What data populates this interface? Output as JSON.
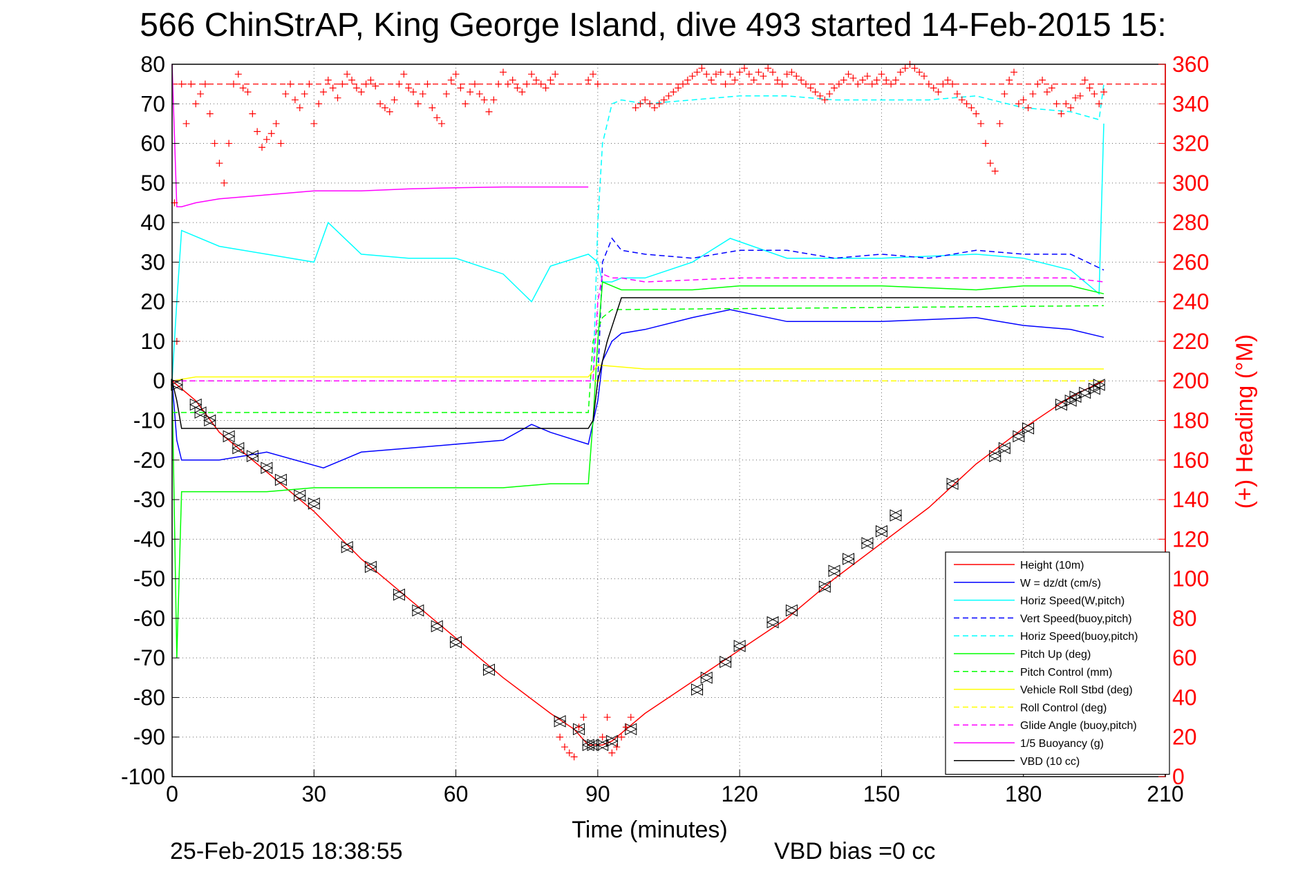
{
  "chart_data": {
    "type": "line",
    "title": "566 ChinStrAP, King George Island, dive 493 started 14-Feb-2015 15:",
    "xlabel": "Time (minutes)",
    "ylabel": "",
    "y2label": "(+) Heading (°M)",
    "xlim": [
      0,
      210
    ],
    "ylim": [
      -100,
      80
    ],
    "y2lim": [
      0,
      360
    ],
    "xticks": [
      "0",
      "30",
      "60",
      "90",
      "120",
      "150",
      "180",
      "210"
    ],
    "yticks": [
      "80",
      "70",
      "60",
      "50",
      "40",
      "30",
      "20",
      "10",
      "0",
      "-10",
      "-20",
      "-30",
      "-40",
      "-50",
      "-60",
      "-70",
      "-80",
      "-90",
      "-100"
    ],
    "y2ticks": [
      "360",
      "340",
      "320",
      "300",
      "280",
      "260",
      "240",
      "220",
      "200",
      "180",
      "160",
      "140",
      "120",
      "100",
      "80",
      "60",
      "40",
      "20",
      "0"
    ],
    "grid": true,
    "legend_position": "bottom-right",
    "series": [
      {
        "name": "Height (10m)",
        "color": "#ff0000",
        "style": "solid",
        "x": [
          0,
          5,
          10,
          20,
          30,
          40,
          50,
          60,
          70,
          80,
          85,
          88,
          91,
          93,
          96,
          100,
          110,
          120,
          130,
          140,
          150,
          160,
          170,
          180,
          190,
          197
        ],
        "y": [
          0,
          -5,
          -13,
          -23,
          -33,
          -45,
          -55,
          -65,
          -75,
          -84,
          -88,
          -92,
          -92,
          -91,
          -88,
          -84,
          -76,
          -68,
          -60,
          -50,
          -41,
          -32,
          -21,
          -12,
          -4,
          0
        ]
      },
      {
        "name": "W = dz/dt (cm/s)",
        "color": "#0000ff",
        "style": "solid",
        "x": [
          0,
          1,
          2,
          10,
          20,
          32,
          40,
          50,
          60,
          70,
          76,
          80,
          88,
          90,
          91,
          93,
          95,
          100,
          110,
          118,
          130,
          150,
          170,
          180,
          190,
          197
        ],
        "y": [
          0,
          -15,
          -20,
          -20,
          -18,
          -22,
          -18,
          -17,
          -16,
          -15,
          -11,
          -13,
          -16,
          -5,
          5,
          10,
          12,
          13,
          16,
          18,
          15,
          15,
          16,
          14,
          13,
          11
        ]
      },
      {
        "name": "Horiz Speed(W,pitch)",
        "color": "#00ffff",
        "style": "solid",
        "x": [
          0,
          1,
          2,
          10,
          20,
          30,
          33,
          40,
          50,
          60,
          70,
          76,
          80,
          88,
          90,
          91,
          93,
          95,
          100,
          110,
          118,
          130,
          150,
          170,
          180,
          190,
          196,
          197
        ],
        "y": [
          0,
          20,
          38,
          34,
          32,
          30,
          40,
          32,
          31,
          31,
          27,
          20,
          29,
          32,
          30,
          25,
          25,
          26,
          26,
          30,
          36,
          31,
          31,
          32,
          31,
          28,
          22,
          65
        ]
      },
      {
        "name": "Vert Speed(buoy,pitch)",
        "color": "#0000ff",
        "style": "dashed",
        "x": [
          90,
          91,
          93,
          95,
          100,
          110,
          120,
          130,
          140,
          150,
          160,
          170,
          180,
          190,
          197
        ],
        "y": [
          0,
          30,
          36,
          33,
          32,
          31,
          33,
          33,
          31,
          32,
          31,
          33,
          32,
          32,
          28
        ]
      },
      {
        "name": "Horiz Speed(buoy,pitch)",
        "color": "#00ffff",
        "style": "dashed",
        "x": [
          89,
          90,
          91,
          93,
          95,
          100,
          110,
          120,
          130,
          140,
          150,
          160,
          170,
          180,
          190,
          196,
          197
        ],
        "y": [
          0,
          40,
          60,
          70,
          71,
          70,
          71,
          72,
          72,
          71,
          71,
          71,
          72,
          69,
          68,
          66,
          75
        ]
      },
      {
        "name": "Pitch Up (deg)",
        "color": "#00ff00",
        "style": "solid",
        "x": [
          0,
          1,
          2,
          10,
          20,
          30,
          40,
          50,
          60,
          70,
          80,
          88,
          89,
          90,
          91,
          93,
          95,
          100,
          110,
          120,
          130,
          150,
          170,
          180,
          190,
          197
        ],
        "y": [
          0,
          -70,
          -28,
          -28,
          -28,
          -27,
          -27,
          -27,
          -27,
          -27,
          -26,
          -26,
          -10,
          10,
          25,
          24,
          23,
          23,
          23,
          24,
          24,
          24,
          23,
          24,
          24,
          22
        ]
      },
      {
        "name": "Pitch Control (mm)",
        "color": "#00ff00",
        "style": "dashed",
        "x": [
          0,
          2,
          88,
          89,
          91,
          93,
          197
        ],
        "y": [
          -8,
          -8,
          -8,
          10,
          16,
          18,
          19
        ]
      },
      {
        "name": "Vehicle Roll Stbd (deg)",
        "color": "#ffff00",
        "style": "solid",
        "x": [
          0,
          5,
          10,
          20,
          40,
          60,
          80,
          88,
          90,
          100,
          120,
          140,
          160,
          170,
          175,
          180,
          190,
          197
        ],
        "y": [
          0,
          1,
          1,
          1,
          1,
          1,
          1,
          1,
          4,
          3,
          3,
          3,
          3,
          3,
          3,
          3,
          3,
          3
        ]
      },
      {
        "name": "Roll Control (deg)",
        "color": "#ffff00",
        "style": "dashed",
        "x": [
          0,
          88,
          89,
          90,
          197
        ],
        "y": [
          0,
          0,
          0,
          0,
          0
        ]
      },
      {
        "name": "Glide Angle (buoy,pitch)",
        "color": "#ff00ff",
        "style": "dashed",
        "x": [
          0,
          89,
          90,
          91,
          93,
          95,
          100,
          120,
          140,
          160,
          180,
          190,
          197
        ],
        "y": [
          0,
          0,
          20,
          27,
          26,
          26,
          25,
          26,
          26,
          26,
          26,
          26,
          25
        ]
      },
      {
        "name": "1/5 Buoyancy (g)",
        "color": "#ff00ff",
        "style": "solid",
        "x": [
          0,
          1,
          2,
          5,
          10,
          20,
          30,
          40,
          50,
          60,
          70,
          80,
          88
        ],
        "y": [
          80,
          44,
          44,
          45,
          46,
          47,
          48,
          48,
          48.5,
          48.8,
          49,
          49,
          49
        ]
      },
      {
        "name": "VBD (10 cc)",
        "color": "#000000",
        "style": "solid",
        "x": [
          0,
          1,
          2,
          88,
          89,
          90,
          92,
          95,
          197
        ],
        "y": [
          0,
          -5,
          -12,
          -12,
          -10,
          0,
          10,
          21,
          21
        ]
      }
    ],
    "heading_scatter": {
      "series_name": "(+) Heading (°M)",
      "axis": "right",
      "color": "#ff0000",
      "marker": "+",
      "x": [
        0.5,
        1,
        2,
        3,
        4,
        5,
        6,
        7,
        8,
        9,
        10,
        11,
        12,
        13,
        14,
        15,
        16,
        17,
        18,
        19,
        20,
        21,
        22,
        23,
        24,
        25,
        26,
        27,
        28,
        29,
        30,
        31,
        32,
        33,
        34,
        35,
        36,
        37,
        38,
        39,
        40,
        41,
        42,
        43,
        44,
        45,
        46,
        47,
        48,
        49,
        50,
        51,
        52,
        53,
        54,
        55,
        56,
        57,
        58,
        59,
        60,
        61,
        62,
        63,
        64,
        65,
        66,
        67,
        68,
        69,
        70,
        71,
        72,
        73,
        74,
        75,
        76,
        77,
        78,
        79,
        80,
        81,
        82,
        83,
        84,
        85,
        86,
        87,
        88,
        89,
        90,
        91,
        92,
        93,
        94,
        95,
        96,
        97,
        98,
        99,
        100,
        101,
        102,
        103,
        104,
        105,
        106,
        107,
        108,
        109,
        110,
        111,
        112,
        113,
        114,
        115,
        116,
        117,
        118,
        119,
        120,
        121,
        122,
        123,
        124,
        125,
        126,
        127,
        128,
        129,
        130,
        131,
        132,
        133,
        134,
        135,
        136,
        137,
        138,
        139,
        140,
        141,
        142,
        143,
        144,
        145,
        146,
        147,
        148,
        149,
        150,
        151,
        152,
        153,
        154,
        155,
        156,
        157,
        158,
        159,
        160,
        161,
        162,
        163,
        164,
        165,
        166,
        167,
        168,
        169,
        170,
        171,
        172,
        173,
        174,
        175,
        176,
        177,
        178,
        179,
        180,
        181,
        182,
        183,
        184,
        185,
        186,
        187,
        188,
        189,
        190,
        191,
        192,
        193,
        194,
        195,
        196,
        197
      ],
      "y": [
        290,
        220,
        350,
        330,
        350,
        340,
        345,
        350,
        335,
        320,
        310,
        300,
        320,
        350,
        355,
        348,
        346,
        335,
        326,
        318,
        322,
        325,
        330,
        320,
        345,
        350,
        342,
        338,
        345,
        350,
        330,
        340,
        346,
        352,
        348,
        343,
        350,
        355,
        352,
        348,
        346,
        350,
        352,
        349,
        340,
        338,
        336,
        342,
        350,
        355,
        348,
        346,
        340,
        345,
        350,
        338,
        333,
        330,
        345,
        352,
        355,
        348,
        340,
        346,
        350,
        345,
        342,
        336,
        342,
        350,
        356,
        350,
        352,
        348,
        346,
        350,
        355,
        352,
        350,
        348,
        352,
        355,
        20,
        15,
        12,
        10,
        25,
        30,
        352,
        355,
        350,
        20,
        30,
        12,
        15,
        20,
        25,
        30,
        338,
        340,
        342,
        340,
        338,
        340,
        342,
        344,
        346,
        348,
        350,
        352,
        354,
        356,
        358,
        355,
        352,
        355,
        356,
        350,
        355,
        352,
        356,
        358,
        355,
        352,
        356,
        354,
        358,
        356,
        352,
        350,
        355,
        356,
        354,
        352,
        350,
        348,
        346,
        344,
        342,
        345,
        348,
        350,
        352,
        355,
        353,
        350,
        352,
        354,
        350,
        352,
        355,
        352,
        350,
        352,
        356,
        358,
        360,
        358,
        356,
        354,
        350,
        348,
        346,
        350,
        352,
        350,
        345,
        342,
        340,
        338,
        335,
        330,
        320,
        310,
        306,
        330,
        345,
        352,
        356,
        340,
        342,
        338,
        345,
        350,
        352,
        346,
        348,
        340,
        335,
        340,
        338,
        343,
        344,
        352,
        348,
        345,
        340,
        346
      ]
    },
    "markers": {
      "style": "triangle",
      "color": "#000000",
      "x": [
        1,
        5,
        6,
        8,
        12,
        14,
        17,
        20,
        23,
        27,
        30,
        37,
        42,
        48,
        52,
        56,
        60,
        67,
        82,
        86,
        88,
        89,
        91,
        93,
        97,
        111,
        113,
        117,
        120,
        127,
        131,
        138,
        140,
        143,
        147,
        150,
        153,
        165,
        174,
        176,
        179,
        181,
        188,
        190,
        191,
        193,
        195,
        196
      ],
      "y": [
        -1,
        -6,
        -8,
        -10,
        -14,
        -17,
        -19,
        -22,
        -25,
        -29,
        -31,
        -42,
        -47,
        -54,
        -58,
        -62,
        -66,
        -73,
        -86,
        -88,
        -92,
        -92,
        -92,
        -91,
        -88,
        -78,
        -75,
        -71,
        -67,
        -61,
        -58,
        -52,
        -48,
        -45,
        -41,
        -38,
        -34,
        -26,
        -19,
        -17,
        -14,
        -12,
        -6,
        -5,
        -4,
        -3,
        -2,
        -1
      ]
    },
    "heading_ref": {
      "y2": 350,
      "style": "dashed",
      "color": "#ff0000"
    },
    "footer_left": "25-Feb-2015 18:38:55",
    "footer_right": "VBD bias =0 cc"
  }
}
